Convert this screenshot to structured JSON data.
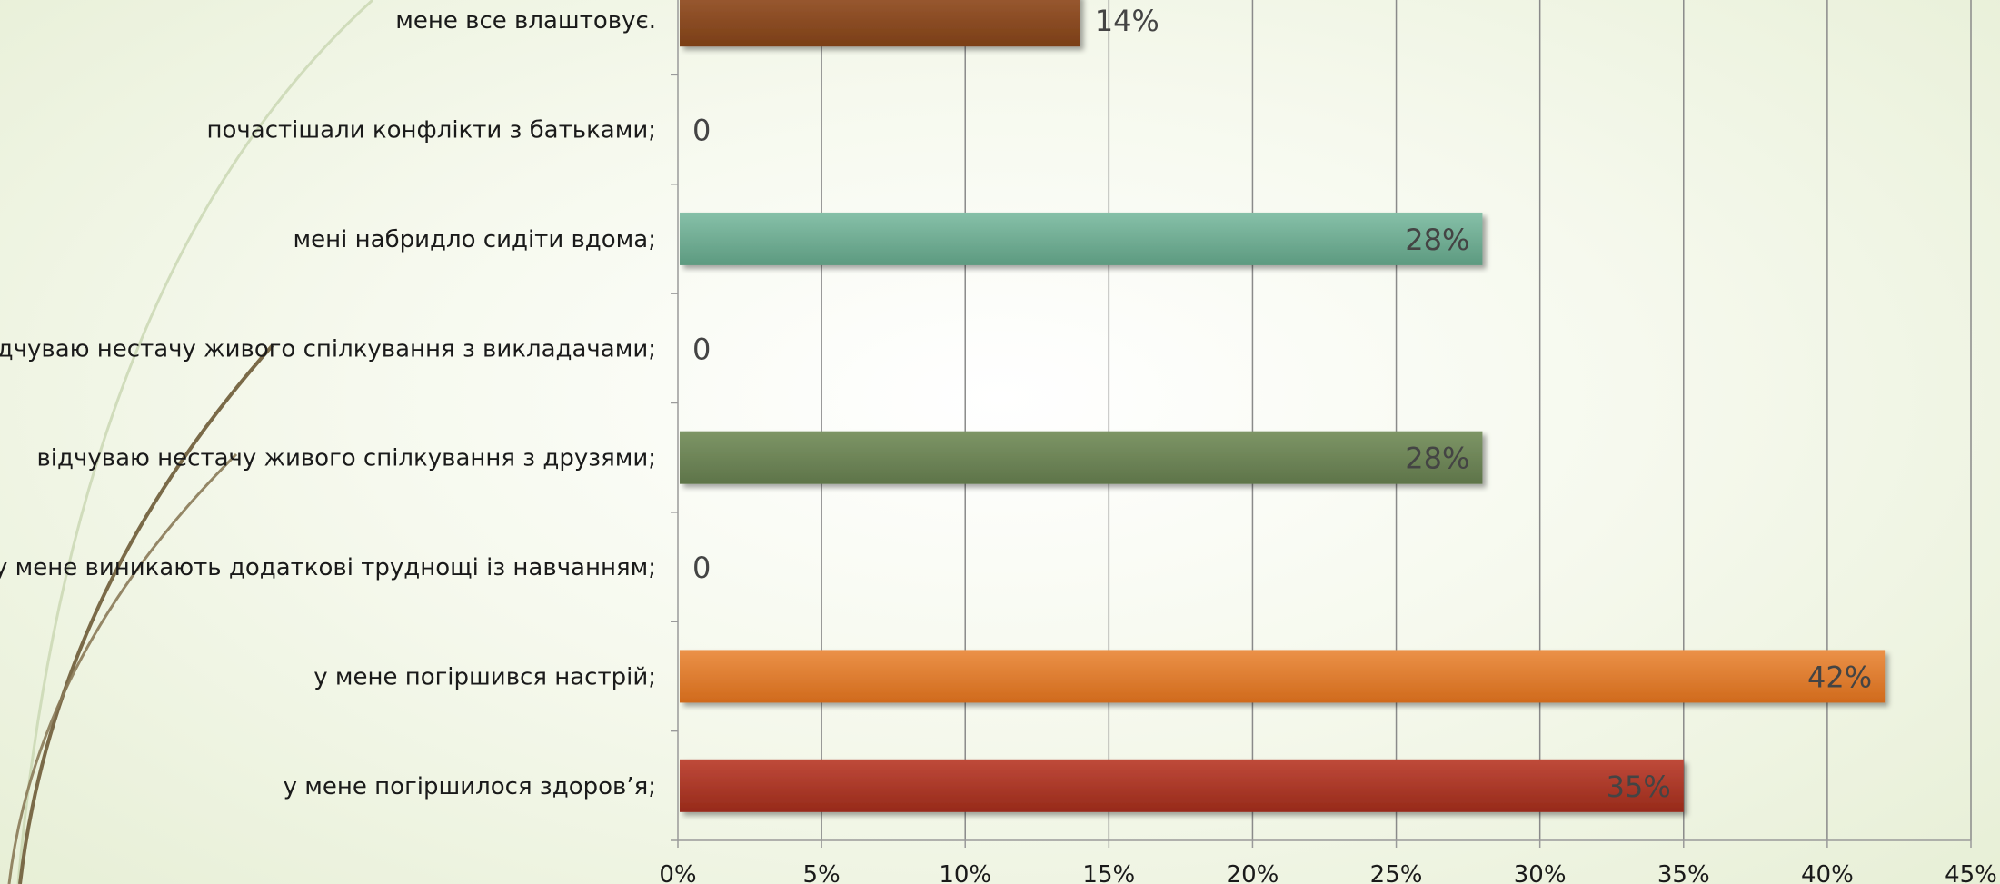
{
  "chart_data": {
    "type": "bar",
    "orientation": "horizontal",
    "title": "",
    "xlabel": "",
    "ylabel": "",
    "xlim": [
      0,
      45
    ],
    "x_ticks": [
      "0%",
      "5%",
      "10%",
      "15%",
      "20%",
      "25%",
      "30%",
      "35%",
      "40%",
      "45%"
    ],
    "grid": true,
    "legend": "none",
    "categories": [
      "мене все влаштовує.",
      "почастішали конфлікти з батьками;",
      "мені набридло сидіти вдома;",
      "відчуваю нестачу живого спілкування з викладачами;",
      "відчуваю нестачу живого спілкування з друзями;",
      "у мене виникають додаткові труднощі із навчанням;",
      "у мене погіршився настрій;",
      "у мене погіршилося здоров’я;"
    ],
    "values": [
      14,
      0,
      28,
      0,
      28,
      0,
      42,
      35
    ],
    "data_labels": [
      "14%",
      "0",
      "28%",
      "0",
      "28%",
      "0",
      "42%",
      "35%"
    ],
    "colors": [
      "#8b4a22",
      "#6aa88f",
      "#6aa88f",
      "#6b8356",
      "#6b8356",
      "#e07d30",
      "#e07d30",
      "#a83a28"
    ],
    "bar_colors": {
      "мене все влаштовує.": {
        "top": "#9a5a32",
        "bottom": "#7a3e16"
      },
      "мені набридло сидіти вдома;": {
        "top": "#86c0a8",
        "bottom": "#5d9a80"
      },
      "відчуваю нестачу живого спілкування з друзями;": {
        "top": "#7d9566",
        "bottom": "#5e7449"
      },
      "у мене погіршився настрій;": {
        "top": "#eb9148",
        "bottom": "#d06a1c"
      },
      "у мене погіршилося здоров’я;": {
        "top": "#bf4a3a",
        "bottom": "#962a1a"
      }
    },
    "gridline_color": "#8a8a8a",
    "axis_color": "#9a9a9a"
  }
}
